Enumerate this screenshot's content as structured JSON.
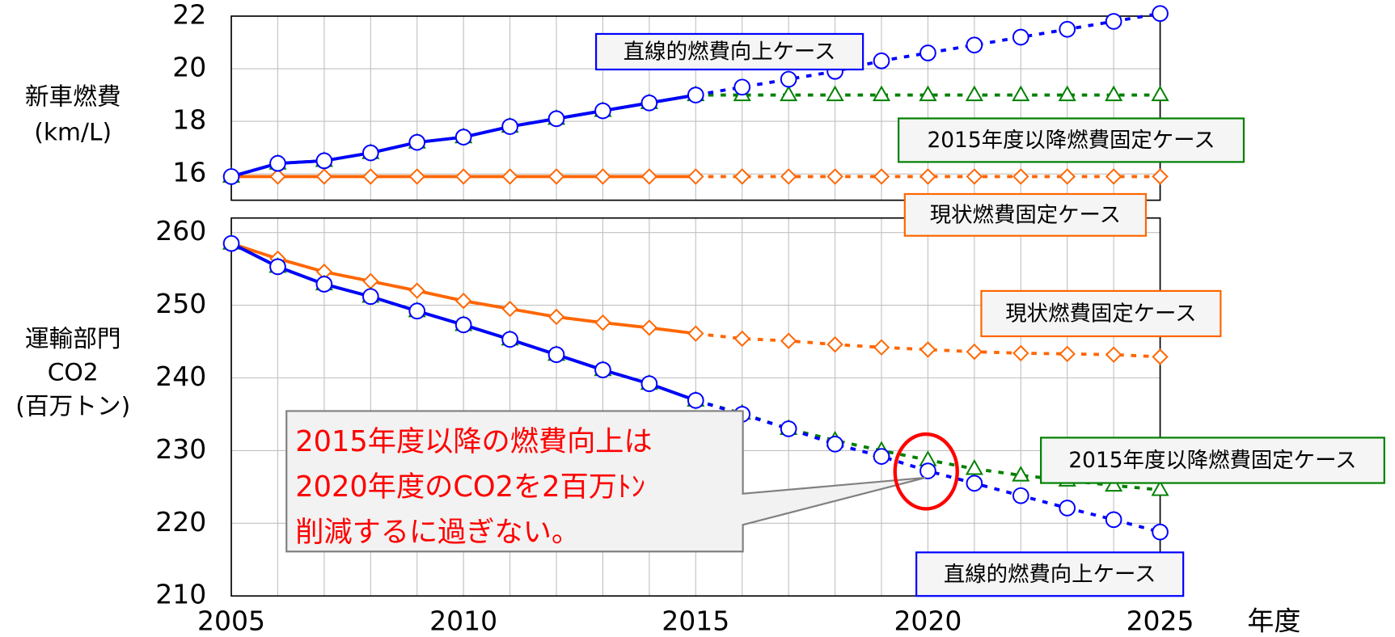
{
  "chart_data": [
    {
      "type": "line",
      "ylabel": [
        "新車燃費",
        "(km/L)"
      ],
      "x": [
        2005,
        2006,
        2007,
        2008,
        2009,
        2010,
        2011,
        2012,
        2013,
        2014,
        2015,
        2016,
        2017,
        2018,
        2019,
        2020,
        2021,
        2022,
        2023,
        2024,
        2025
      ],
      "xlim": [
        2005,
        2025
      ],
      "ylim": [
        15,
        22
      ],
      "yticks": [
        16,
        18,
        20,
        22
      ],
      "grid": true,
      "dotted_after": 2015,
      "series": [
        {
          "name": "直線的燃費向上ケース",
          "color": "#0000ff",
          "marker": "circle",
          "values": [
            15.9,
            16.4,
            16.5,
            16.8,
            17.2,
            17.4,
            17.8,
            18.1,
            18.4,
            18.7,
            19.0,
            19.3,
            19.6,
            19.9,
            20.3,
            20.6,
            20.9,
            21.2,
            21.5,
            21.8,
            22.1
          ]
        },
        {
          "name": "2015年度以降燃費固定ケース",
          "color": "#008000",
          "marker": "triangle",
          "values": [
            15.9,
            16.4,
            16.5,
            16.8,
            17.2,
            17.4,
            17.8,
            18.1,
            18.4,
            18.7,
            19.0,
            19.0,
            19.0,
            19.0,
            19.0,
            19.0,
            19.0,
            19.0,
            19.0,
            19.0,
            19.0
          ]
        },
        {
          "name": "現状燃費固定ケース",
          "color": "#ff6600",
          "marker": "diamond",
          "values": [
            15.9,
            15.9,
            15.9,
            15.9,
            15.9,
            15.9,
            15.9,
            15.9,
            15.9,
            15.9,
            15.9,
            15.9,
            15.9,
            15.9,
            15.9,
            15.9,
            15.9,
            15.9,
            15.9,
            15.9,
            15.9
          ]
        }
      ]
    },
    {
      "type": "line",
      "ylabel": [
        "運輸部門",
        "CO2",
        "(百万トン)"
      ],
      "xlabel": "年度",
      "x": [
        2005,
        2006,
        2007,
        2008,
        2009,
        2010,
        2011,
        2012,
        2013,
        2014,
        2015,
        2016,
        2017,
        2018,
        2019,
        2020,
        2021,
        2022,
        2023,
        2024,
        2025
      ],
      "xlim": [
        2005,
        2025
      ],
      "xticks": [
        2005,
        2010,
        2015,
        2020,
        2025
      ],
      "ylim": [
        210,
        262
      ],
      "yticks": [
        210,
        220,
        230,
        240,
        250,
        260
      ],
      "grid": true,
      "dotted_after": 2015,
      "annotation": [
        "2015年度以降の燃費向上は",
        "2020年度のCO2を2百万ﾄﾝ",
        "削減するに過ぎない。"
      ],
      "series": [
        {
          "name": "直線的燃費向上ケース",
          "color": "#0000ff",
          "marker": "circle",
          "values": [
            258.5,
            255.3,
            252.9,
            251.2,
            249.2,
            247.3,
            245.3,
            243.2,
            241.1,
            239.2,
            236.9,
            235.0,
            233.0,
            230.9,
            229.2,
            227.2,
            225.5,
            223.8,
            222.1,
            220.5,
            218.8
          ]
        },
        {
          "name": "2015年度以降燃費固定ケース",
          "color": "#008000",
          "marker": "triangle",
          "values": [
            258.5,
            255.3,
            252.9,
            251.2,
            249.2,
            247.3,
            245.3,
            243.2,
            241.1,
            239.2,
            236.9,
            235.1,
            233.0,
            231.4,
            230.0,
            228.7,
            227.5,
            226.6,
            225.9,
            225.2,
            224.6
          ]
        },
        {
          "name": "現状燃費固定ケース",
          "color": "#ff6600",
          "marker": "diamond",
          "values": [
            258.5,
            256.4,
            254.6,
            253.3,
            252.0,
            250.6,
            249.5,
            248.4,
            247.6,
            246.9,
            246.1,
            245.4,
            245.1,
            244.6,
            244.2,
            243.9,
            243.6,
            243.4,
            243.3,
            243.2,
            242.9
          ]
        }
      ]
    }
  ]
}
